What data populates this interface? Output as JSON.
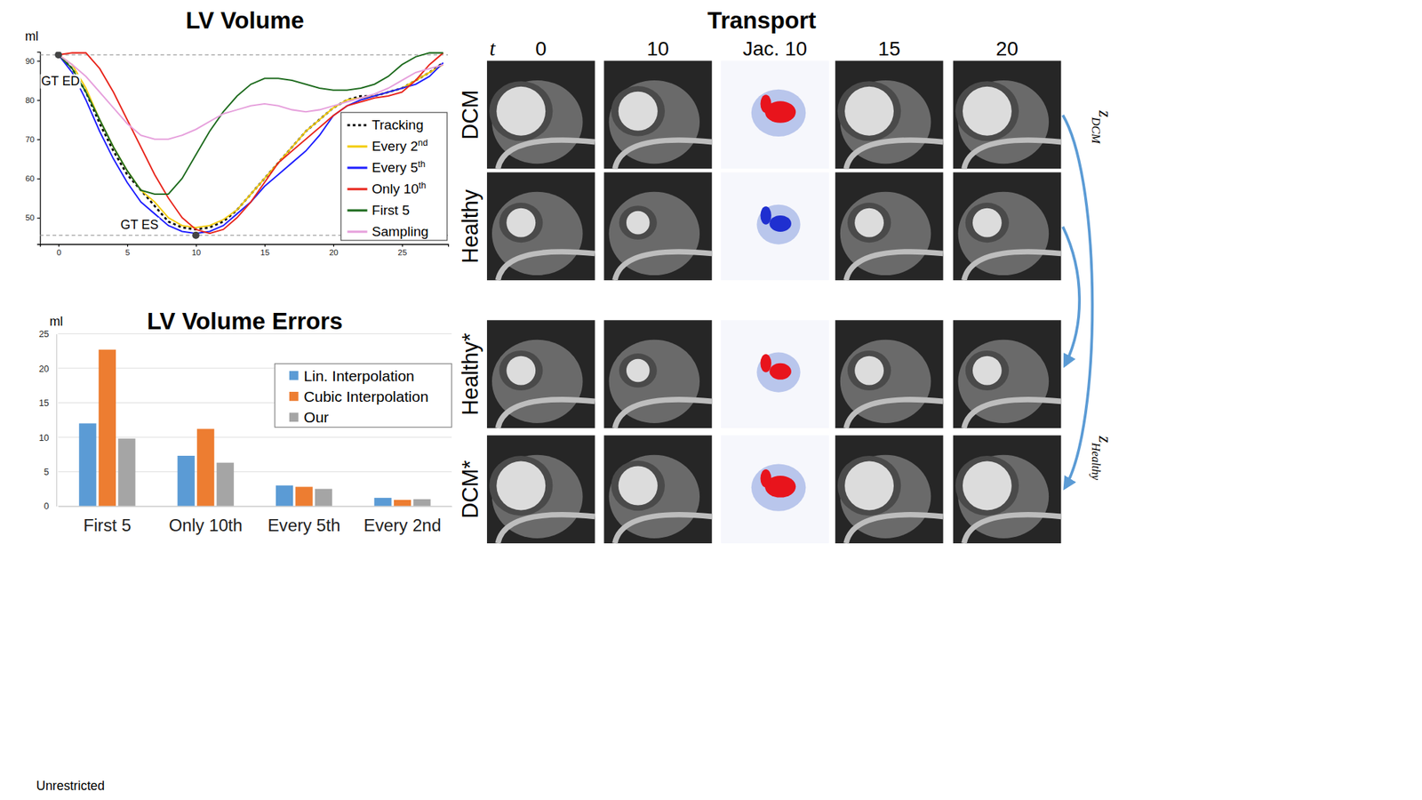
{
  "chart_data": [
    {
      "type": "line",
      "title": "LV Volume",
      "y_label": "ml",
      "x": [
        0,
        1,
        2,
        3,
        4,
        5,
        6,
        7,
        8,
        9,
        10,
        11,
        12,
        13,
        14,
        15,
        16,
        17,
        18,
        19,
        20,
        21,
        22,
        23,
        24,
        25,
        26,
        27,
        28
      ],
      "series": [
        {
          "name": "Tracking",
          "color": "#000000",
          "line_style": "dotted",
          "values": [
            91.5,
            88,
            82,
            74,
            67,
            61,
            57,
            53,
            49,
            47.5,
            47,
            47.5,
            49,
            52,
            56,
            60,
            64,
            68,
            72,
            75,
            78,
            80,
            81,
            81,
            82,
            83,
            85,
            87,
            89.5
          ]
        },
        {
          "name": "Every 2nd",
          "color": "#f2cc0c",
          "line_style": "solid",
          "values": [
            91.5,
            89,
            83,
            75,
            68,
            62,
            57,
            54,
            50,
            48,
            47.5,
            48,
            49.5,
            52,
            56,
            60,
            64,
            68,
            72,
            75,
            78,
            80,
            80.5,
            81,
            82,
            83,
            85,
            87,
            89
          ]
        },
        {
          "name": "Every 5th",
          "color": "#1f1fff",
          "line_style": "solid",
          "values": [
            91.5,
            87,
            80,
            72,
            65,
            59,
            54,
            51,
            48,
            46.5,
            46,
            46.5,
            48,
            51,
            54,
            58,
            61,
            64,
            67,
            71,
            76,
            78.5,
            80,
            81,
            82,
            83,
            84,
            86,
            89.5
          ]
        },
        {
          "name": "Only 10th",
          "color": "#e8261c",
          "line_style": "solid",
          "values": [
            91.5,
            92,
            92,
            88,
            82,
            75,
            68,
            61,
            55,
            50,
            47,
            46,
            47,
            50,
            54,
            59,
            64,
            67,
            70,
            73,
            76,
            78.5,
            79.5,
            80.5,
            81,
            82,
            85,
            89,
            92
          ]
        },
        {
          "name": "First 5",
          "color": "#1e6b1e",
          "line_style": "solid",
          "values": [
            91.5,
            88,
            82,
            75,
            68,
            62,
            57,
            56,
            56,
            60,
            66,
            72,
            77,
            81,
            84,
            85.5,
            85.5,
            85,
            84,
            83,
            82.5,
            82.5,
            83,
            84,
            86,
            89,
            91,
            92,
            92
          ]
        },
        {
          "name": "Sampling",
          "color": "#e6a0dc",
          "line_style": "solid",
          "values": [
            91.5,
            89,
            86,
            82,
            78,
            74,
            71,
            70,
            70,
            71,
            72.5,
            74.5,
            76.5,
            77.5,
            78.5,
            79,
            78.5,
            77.5,
            77,
            77.5,
            78.5,
            79.5,
            80.5,
            81.5,
            83,
            85,
            87,
            88,
            89
          ]
        }
      ],
      "annotations": [
        {
          "text": "GT ED",
          "x": 0,
          "y": 91.5
        },
        {
          "text": "GT ES",
          "x": 10,
          "y": 45.5
        }
      ],
      "xlim": [
        -1.35,
        28.35
      ],
      "ylim": [
        43.3,
        92.3
      ],
      "xticks": [
        0,
        5,
        10,
        15,
        20,
        25
      ],
      "yticks": [
        50,
        60,
        70,
        80,
        90
      ],
      "legend": "lower right"
    },
    {
      "type": "bar",
      "title": "LV Volume Errors",
      "y_label": "ml",
      "categories": [
        "First 5",
        "Only 10th",
        "Every 5th",
        "Every 2nd"
      ],
      "series": [
        {
          "name": "Lin. Interpolation",
          "color": "#5b9bd5",
          "values": [
            12,
            7.3,
            3,
            1.2
          ]
        },
        {
          "name": "Cubic Interpolation",
          "color": "#ed7d31",
          "values": [
            22.7,
            11.2,
            2.8,
            0.9
          ]
        },
        {
          "name": "Our",
          "color": "#a5a5a5",
          "values": [
            9.8,
            6.3,
            2.5,
            1.0
          ]
        }
      ],
      "ylim": [
        0,
        25
      ],
      "yticks": [
        0,
        5,
        10,
        15,
        20,
        25
      ],
      "grid": true,
      "legend": "upper right"
    }
  ],
  "transport": {
    "title": "Transport",
    "time_label": "t",
    "columns": [
      "0",
      "10",
      "Jac. 10",
      "15",
      "20"
    ],
    "rows": [
      "DCM",
      "Healthy",
      "Healthy*",
      "DCM*"
    ],
    "codes": [
      {
        "symbol": "z",
        "subscript": "DCM"
      },
      {
        "symbol": "z",
        "subscript": "Healthy"
      }
    ]
  },
  "footer": "Unrestricted"
}
